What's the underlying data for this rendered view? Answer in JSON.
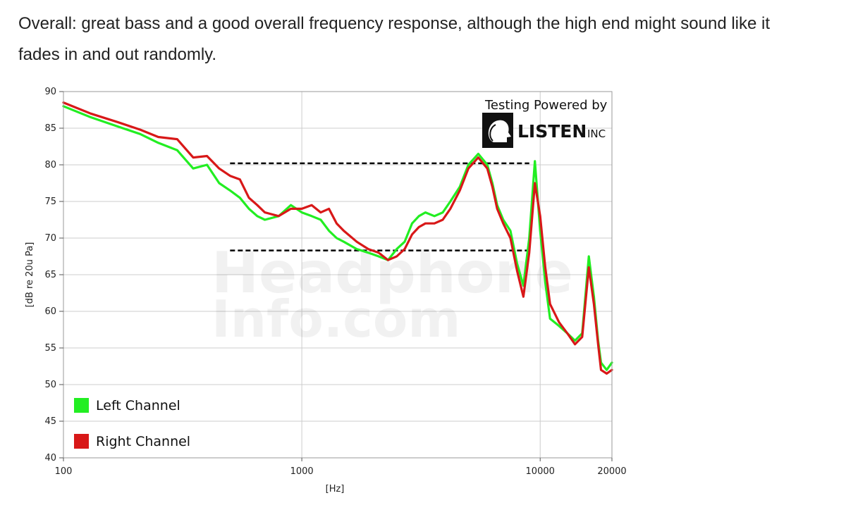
{
  "intro": {
    "line1": "Overall: great bass and a good overall frequency response, although the high end might sound like it",
    "line2": "fades in and out randomly."
  },
  "branding": {
    "powered_by": "Testing Powered by",
    "logo_main": "LISTEN",
    "logo_sub": "INC",
    "logo_icon": "head-silhouette-icon",
    "watermark_line1": "Headphone",
    "watermark_line2": "Info.com"
  },
  "chart_data": {
    "type": "line",
    "xscale": "log",
    "xlim": [
      100,
      20000
    ],
    "ylim": [
      40,
      90
    ],
    "xlabel": "[Hz]",
    "ylabel": "[dB re 20u Pa]",
    "xticks": [
      {
        "value": 100,
        "label": "100"
      },
      {
        "value": 1000,
        "label": "1000"
      },
      {
        "value": 10000,
        "label": "10000"
      },
      {
        "value": 20000,
        "label": "20000"
      }
    ],
    "yticks": [
      90,
      85,
      80,
      75,
      70,
      65,
      60,
      55,
      50,
      45,
      40
    ],
    "grid": true,
    "legend_position": "bottom-left",
    "series": [
      {
        "name": "Left Channel",
        "color": "#22ee22",
        "x": [
          100,
          130,
          170,
          210,
          250,
          300,
          350,
          400,
          450,
          500,
          550,
          600,
          650,
          700,
          800,
          900,
          1000,
          1100,
          1200,
          1300,
          1400,
          1500,
          1700,
          1900,
          2100,
          2300,
          2500,
          2700,
          2900,
          3100,
          3300,
          3600,
          3900,
          4200,
          4600,
          5000,
          5500,
          6000,
          6300,
          6600,
          7000,
          7500,
          8000,
          8500,
          9000,
          9500,
          10000,
          10500,
          11000,
          12000,
          13000,
          14000,
          15000,
          16000,
          16800,
          17500,
          18000,
          19000,
          20000
        ],
        "y": [
          88,
          86.5,
          85.2,
          84.2,
          83,
          82,
          79.5,
          80,
          77.5,
          76.5,
          75.5,
          74,
          73,
          72.5,
          73,
          74.5,
          73.5,
          73,
          72.5,
          71,
          70,
          69.5,
          68.5,
          68,
          67.5,
          67,
          68.5,
          69.5,
          72,
          73,
          73.5,
          73,
          73.5,
          75,
          77,
          80,
          81.5,
          80,
          77.5,
          74.5,
          72.5,
          71,
          66.5,
          63.5,
          70,
          80.5,
          71,
          64,
          59,
          58,
          57,
          56,
          57,
          67.5,
          62,
          56,
          53,
          52,
          53
        ]
      },
      {
        "name": "Right Channel",
        "color": "#d81818",
        "x": [
          100,
          130,
          170,
          210,
          250,
          300,
          350,
          400,
          450,
          500,
          550,
          600,
          650,
          700,
          800,
          900,
          1000,
          1100,
          1200,
          1300,
          1400,
          1500,
          1700,
          1900,
          2100,
          2300,
          2500,
          2700,
          2900,
          3100,
          3300,
          3600,
          3900,
          4200,
          4600,
          5000,
          5500,
          6000,
          6300,
          6600,
          7000,
          7500,
          8000,
          8500,
          9000,
          9500,
          10000,
          10500,
          11000,
          12000,
          13000,
          14000,
          15000,
          16000,
          16800,
          17500,
          18000,
          19000,
          20000
        ],
        "y": [
          88.5,
          87,
          85.8,
          84.8,
          83.8,
          83.5,
          81,
          81.2,
          79.5,
          78.5,
          78,
          75.5,
          74.5,
          73.5,
          73,
          74,
          74,
          74.5,
          73.5,
          74,
          72,
          71,
          69.5,
          68.5,
          68,
          67,
          67.5,
          68.5,
          70.5,
          71.5,
          72,
          72,
          72.5,
          74,
          76.5,
          79.5,
          81,
          79.5,
          77,
          74,
          72,
          70,
          65.5,
          62,
          68,
          77.5,
          73,
          66,
          61,
          58.5,
          57,
          55.5,
          56.5,
          66,
          61,
          55.5,
          52,
          51.5,
          52
        ]
      }
    ],
    "annotations": [
      {
        "type": "dashed-hline",
        "y": 80.2,
        "x_start": 500,
        "x_end": 9000,
        "color": "#000000"
      },
      {
        "type": "dashed-hline",
        "y": 68.3,
        "x_start": 500,
        "x_end": 9000,
        "color": "#000000"
      }
    ]
  }
}
